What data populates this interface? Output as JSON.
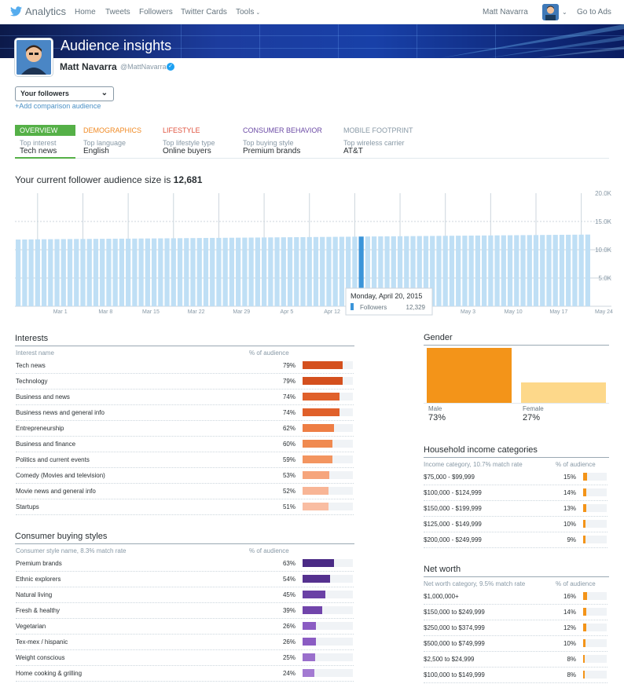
{
  "nav": {
    "brand": "Analytics",
    "items": [
      "Home",
      "Tweets",
      "Followers",
      "Twitter Cards",
      "Tools"
    ],
    "user": "Matt Navarra",
    "go_to_ads": "Go to Ads"
  },
  "header": {
    "title": "Audience insights",
    "name": "Matt Navarra",
    "handle": "@MattNavarra"
  },
  "audience_select": {
    "value": "Your followers",
    "add_comparison": "+Add comparison audience"
  },
  "tabs": [
    {
      "label": "OVERVIEW",
      "sub": "Top interest",
      "value": "Tech news",
      "color": "#ffffff",
      "bg": "#55b047"
    },
    {
      "label": "DEMOGRAPHICS",
      "sub": "Top language",
      "value": "English",
      "color": "#f08a24",
      "bg": ""
    },
    {
      "label": "LIFESTYLE",
      "sub": "Top lifestyle type",
      "value": "Online buyers",
      "color": "#e0533f",
      "bg": ""
    },
    {
      "label": "CONSUMER BEHAVIOR",
      "sub": "Top buying style",
      "value": "Premium brands",
      "color": "#6b4aa5",
      "bg": ""
    },
    {
      "label": "MOBILE FOOTPRINT",
      "sub": "Top wireless carrier",
      "value": "AT&T",
      "color": "#8899a6",
      "bg": ""
    }
  ],
  "audience_size": {
    "prefix": "Your current follower audience size is ",
    "value": "12,681"
  },
  "chart_data": {
    "type": "bar",
    "y_ticks": [
      "20.0K",
      "15.0K",
      "10.0K",
      "5.0K"
    ],
    "ylim": [
      0,
      20000
    ],
    "x_ticks": [
      "Mar 1",
      "Mar 8",
      "Mar 15",
      "Mar 22",
      "Mar 29",
      "Apr 5",
      "Apr 12",
      "May 3",
      "May 10",
      "May 17",
      "May 24"
    ],
    "series": [
      {
        "name": "Followers",
        "values": [
          11800,
          11810,
          11825,
          11840,
          11850,
          11860,
          11870,
          11880,
          11890,
          11900,
          11905,
          11910,
          11920,
          11930,
          11940,
          11950,
          11955,
          11960,
          11970,
          11980,
          11990,
          12000,
          12010,
          12020,
          12030,
          12040,
          12050,
          12060,
          12070,
          12080,
          12090,
          12100,
          12110,
          12120,
          12130,
          12140,
          12150,
          12160,
          12170,
          12180,
          12190,
          12200,
          12210,
          12220,
          12230,
          12240,
          12250,
          12260,
          12270,
          12280,
          12290,
          12300,
          12310,
          12329,
          12340,
          12350,
          12360,
          12370,
          12380,
          12390,
          12400,
          12410,
          12420,
          12430,
          12440,
          12450,
          12460,
          12470,
          12480,
          12490,
          12500,
          12510,
          12520,
          12530,
          12540,
          12550,
          12560,
          12570,
          12580,
          12590,
          12600,
          12610,
          12620,
          12630,
          12640,
          12650,
          12660,
          12670,
          12681
        ]
      }
    ],
    "tooltip": {
      "date": "Monday, April 20, 2015",
      "label": "Followers",
      "value": "12,329"
    }
  },
  "interests": {
    "title": "Interests",
    "col1": "Interest name",
    "col2": "% of audience",
    "rows": [
      {
        "name": "Tech news",
        "pct": "79%",
        "v": 79,
        "color": "#d4501e"
      },
      {
        "name": "Technology",
        "pct": "79%",
        "v": 79,
        "color": "#d4501e"
      },
      {
        "name": "Business and news",
        "pct": "74%",
        "v": 74,
        "color": "#e0602a"
      },
      {
        "name": "Business news and general info",
        "pct": "74%",
        "v": 74,
        "color": "#e0602a"
      },
      {
        "name": "Entrepreneurship",
        "pct": "62%",
        "v": 62,
        "color": "#ee7e45"
      },
      {
        "name": "Business and finance",
        "pct": "60%",
        "v": 60,
        "color": "#f08a50"
      },
      {
        "name": "Politics and current events",
        "pct": "59%",
        "v": 59,
        "color": "#f39560"
      },
      {
        "name": "Comedy (Movies and television)",
        "pct": "53%",
        "v": 53,
        "color": "#f6a57c"
      },
      {
        "name": "Movie news and general info",
        "pct": "52%",
        "v": 52,
        "color": "#f8b596"
      },
      {
        "name": "Startups",
        "pct": "51%",
        "v": 51,
        "color": "#f9bda2"
      }
    ]
  },
  "buying_styles": {
    "title": "Consumer buying styles",
    "col1": "Consumer style name, 8.3% match rate",
    "col2": "% of audience",
    "rows": [
      {
        "name": "Premium brands",
        "pct": "63%",
        "v": 63,
        "color": "#4a2a85"
      },
      {
        "name": "Ethnic explorers",
        "pct": "54%",
        "v": 54,
        "color": "#55318f"
      },
      {
        "name": "Natural living",
        "pct": "45%",
        "v": 45,
        "color": "#6a40a5"
      },
      {
        "name": "Fresh & healthy",
        "pct": "39%",
        "v": 39,
        "color": "#7145ab"
      },
      {
        "name": "Vegetarian",
        "pct": "26%",
        "v": 26,
        "color": "#8b5cc3"
      },
      {
        "name": "Tex-mex / hispanic",
        "pct": "26%",
        "v": 26,
        "color": "#8b5cc3"
      },
      {
        "name": "Weight conscious",
        "pct": "25%",
        "v": 25,
        "color": "#9a6fcc"
      },
      {
        "name": "Home cooking & grilling",
        "pct": "24%",
        "v": 24,
        "color": "#a37ad2"
      }
    ]
  },
  "gender": {
    "title": "Gender",
    "male_label": "Male",
    "male_pct": "73%",
    "male_v": 73,
    "male_color": "#f39419",
    "female_label": "Female",
    "female_pct": "27%",
    "female_v": 27,
    "female_color": "#fdd88a"
  },
  "income": {
    "title": "Household income categories",
    "col1": "Income category, 10.7% match rate",
    "col2": "% of audience",
    "rows": [
      {
        "name": "$75,000 - $99,999",
        "pct": "15%",
        "v": 15
      },
      {
        "name": "$100,000 - $124,999",
        "pct": "14%",
        "v": 14
      },
      {
        "name": "$150,000 - $199,999",
        "pct": "13%",
        "v": 13
      },
      {
        "name": "$125,000 - $149,999",
        "pct": "10%",
        "v": 10
      },
      {
        "name": "$200,000 - $249,999",
        "pct": "9%",
        "v": 9
      }
    ]
  },
  "net_worth": {
    "title": "Net worth",
    "col1": "Net worth category, 9.5% match rate",
    "col2": "% of audience",
    "rows": [
      {
        "name": "$1,000,000+",
        "pct": "16%",
        "v": 16
      },
      {
        "name": "$150,000 to $249,999",
        "pct": "14%",
        "v": 14
      },
      {
        "name": "$250,000 to $374,999",
        "pct": "12%",
        "v": 12
      },
      {
        "name": "$500,000 to $749,999",
        "pct": "10%",
        "v": 10
      },
      {
        "name": "$2,500 to $24,999",
        "pct": "8%",
        "v": 8
      },
      {
        "name": "$100,000 to $149,999",
        "pct": "8%",
        "v": 8
      }
    ]
  },
  "accent": {
    "small_bar": "#f39419"
  }
}
